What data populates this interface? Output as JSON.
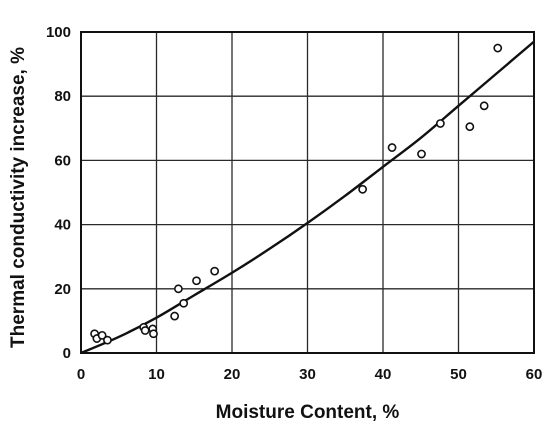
{
  "chart_data": {
    "type": "scatter",
    "title": "",
    "xlabel": "Moisture Content, %",
    "ylabel": "Thermal conductivity increase, %",
    "xlim": [
      0,
      60
    ],
    "ylim": [
      0,
      100
    ],
    "grid": true,
    "x_ticks": [
      "0",
      "10",
      "20",
      "30",
      "40",
      "50",
      "60"
    ],
    "y_ticks": [
      "0",
      "20",
      "40",
      "60",
      "80",
      "100"
    ],
    "points": [
      {
        "x": 1.8,
        "y": 6
      },
      {
        "x": 2.1,
        "y": 4.5
      },
      {
        "x": 2.8,
        "y": 5.5
      },
      {
        "x": 3.5,
        "y": 4
      },
      {
        "x": 8.3,
        "y": 8
      },
      {
        "x": 8.5,
        "y": 7
      },
      {
        "x": 9.5,
        "y": 7.5
      },
      {
        "x": 9.6,
        "y": 6
      },
      {
        "x": 12.4,
        "y": 11.5
      },
      {
        "x": 12.9,
        "y": 20
      },
      {
        "x": 13.6,
        "y": 15.5
      },
      {
        "x": 15.3,
        "y": 22.5
      },
      {
        "x": 17.7,
        "y": 25.5
      },
      {
        "x": 37.3,
        "y": 51
      },
      {
        "x": 41.2,
        "y": 64
      },
      {
        "x": 45.1,
        "y": 62
      },
      {
        "x": 47.6,
        "y": 71.5
      },
      {
        "x": 51.5,
        "y": 70.5
      },
      {
        "x": 53.4,
        "y": 77
      },
      {
        "x": 55.2,
        "y": 95
      }
    ],
    "fit_curve": [
      {
        "x": 0,
        "y": 0
      },
      {
        "x": 5,
        "y": 5
      },
      {
        "x": 10,
        "y": 11
      },
      {
        "x": 15,
        "y": 18
      },
      {
        "x": 20,
        "y": 25
      },
      {
        "x": 25,
        "y": 32.5
      },
      {
        "x": 30,
        "y": 40.5
      },
      {
        "x": 35,
        "y": 49
      },
      {
        "x": 40,
        "y": 58
      },
      {
        "x": 45,
        "y": 67
      },
      {
        "x": 50,
        "y": 77
      },
      {
        "x": 55,
        "y": 87
      },
      {
        "x": 60,
        "y": 97
      }
    ],
    "colors": {
      "ink": "#111111",
      "grid": "#2a2a2a",
      "background": "#ffffff"
    }
  }
}
